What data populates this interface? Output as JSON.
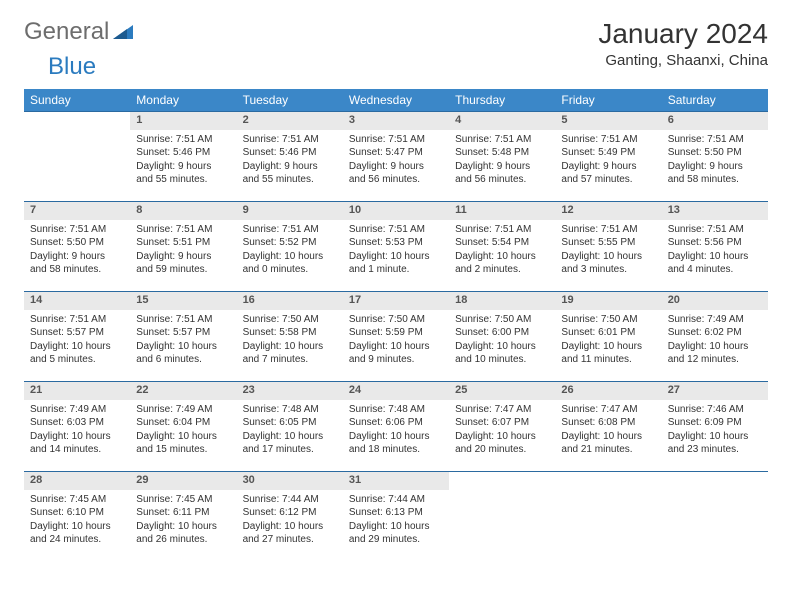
{
  "logo": {
    "text1": "General",
    "text2": "Blue"
  },
  "title": "January 2024",
  "location": "Ganting, Shaanxi, China",
  "colors": {
    "header_bg": "#3b87c8",
    "header_text": "#ffffff",
    "daynum_bg": "#e9e9e9",
    "border": "#2b6aa0",
    "logo_gray": "#6d6d6d",
    "logo_blue": "#2b7bbf"
  },
  "weekdays": [
    "Sunday",
    "Monday",
    "Tuesday",
    "Wednesday",
    "Thursday",
    "Friday",
    "Saturday"
  ],
  "weeks": [
    {
      "days": [
        {
          "num": "",
          "lines": []
        },
        {
          "num": "1",
          "lines": [
            "Sunrise: 7:51 AM",
            "Sunset: 5:46 PM",
            "Daylight: 9 hours",
            "and 55 minutes."
          ]
        },
        {
          "num": "2",
          "lines": [
            "Sunrise: 7:51 AM",
            "Sunset: 5:46 PM",
            "Daylight: 9 hours",
            "and 55 minutes."
          ]
        },
        {
          "num": "3",
          "lines": [
            "Sunrise: 7:51 AM",
            "Sunset: 5:47 PM",
            "Daylight: 9 hours",
            "and 56 minutes."
          ]
        },
        {
          "num": "4",
          "lines": [
            "Sunrise: 7:51 AM",
            "Sunset: 5:48 PM",
            "Daylight: 9 hours",
            "and 56 minutes."
          ]
        },
        {
          "num": "5",
          "lines": [
            "Sunrise: 7:51 AM",
            "Sunset: 5:49 PM",
            "Daylight: 9 hours",
            "and 57 minutes."
          ]
        },
        {
          "num": "6",
          "lines": [
            "Sunrise: 7:51 AM",
            "Sunset: 5:50 PM",
            "Daylight: 9 hours",
            "and 58 minutes."
          ]
        }
      ]
    },
    {
      "days": [
        {
          "num": "7",
          "lines": [
            "Sunrise: 7:51 AM",
            "Sunset: 5:50 PM",
            "Daylight: 9 hours",
            "and 58 minutes."
          ]
        },
        {
          "num": "8",
          "lines": [
            "Sunrise: 7:51 AM",
            "Sunset: 5:51 PM",
            "Daylight: 9 hours",
            "and 59 minutes."
          ]
        },
        {
          "num": "9",
          "lines": [
            "Sunrise: 7:51 AM",
            "Sunset: 5:52 PM",
            "Daylight: 10 hours",
            "and 0 minutes."
          ]
        },
        {
          "num": "10",
          "lines": [
            "Sunrise: 7:51 AM",
            "Sunset: 5:53 PM",
            "Daylight: 10 hours",
            "and 1 minute."
          ]
        },
        {
          "num": "11",
          "lines": [
            "Sunrise: 7:51 AM",
            "Sunset: 5:54 PM",
            "Daylight: 10 hours",
            "and 2 minutes."
          ]
        },
        {
          "num": "12",
          "lines": [
            "Sunrise: 7:51 AM",
            "Sunset: 5:55 PM",
            "Daylight: 10 hours",
            "and 3 minutes."
          ]
        },
        {
          "num": "13",
          "lines": [
            "Sunrise: 7:51 AM",
            "Sunset: 5:56 PM",
            "Daylight: 10 hours",
            "and 4 minutes."
          ]
        }
      ]
    },
    {
      "days": [
        {
          "num": "14",
          "lines": [
            "Sunrise: 7:51 AM",
            "Sunset: 5:57 PM",
            "Daylight: 10 hours",
            "and 5 minutes."
          ]
        },
        {
          "num": "15",
          "lines": [
            "Sunrise: 7:51 AM",
            "Sunset: 5:57 PM",
            "Daylight: 10 hours",
            "and 6 minutes."
          ]
        },
        {
          "num": "16",
          "lines": [
            "Sunrise: 7:50 AM",
            "Sunset: 5:58 PM",
            "Daylight: 10 hours",
            "and 7 minutes."
          ]
        },
        {
          "num": "17",
          "lines": [
            "Sunrise: 7:50 AM",
            "Sunset: 5:59 PM",
            "Daylight: 10 hours",
            "and 9 minutes."
          ]
        },
        {
          "num": "18",
          "lines": [
            "Sunrise: 7:50 AM",
            "Sunset: 6:00 PM",
            "Daylight: 10 hours",
            "and 10 minutes."
          ]
        },
        {
          "num": "19",
          "lines": [
            "Sunrise: 7:50 AM",
            "Sunset: 6:01 PM",
            "Daylight: 10 hours",
            "and 11 minutes."
          ]
        },
        {
          "num": "20",
          "lines": [
            "Sunrise: 7:49 AM",
            "Sunset: 6:02 PM",
            "Daylight: 10 hours",
            "and 12 minutes."
          ]
        }
      ]
    },
    {
      "days": [
        {
          "num": "21",
          "lines": [
            "Sunrise: 7:49 AM",
            "Sunset: 6:03 PM",
            "Daylight: 10 hours",
            "and 14 minutes."
          ]
        },
        {
          "num": "22",
          "lines": [
            "Sunrise: 7:49 AM",
            "Sunset: 6:04 PM",
            "Daylight: 10 hours",
            "and 15 minutes."
          ]
        },
        {
          "num": "23",
          "lines": [
            "Sunrise: 7:48 AM",
            "Sunset: 6:05 PM",
            "Daylight: 10 hours",
            "and 17 minutes."
          ]
        },
        {
          "num": "24",
          "lines": [
            "Sunrise: 7:48 AM",
            "Sunset: 6:06 PM",
            "Daylight: 10 hours",
            "and 18 minutes."
          ]
        },
        {
          "num": "25",
          "lines": [
            "Sunrise: 7:47 AM",
            "Sunset: 6:07 PM",
            "Daylight: 10 hours",
            "and 20 minutes."
          ]
        },
        {
          "num": "26",
          "lines": [
            "Sunrise: 7:47 AM",
            "Sunset: 6:08 PM",
            "Daylight: 10 hours",
            "and 21 minutes."
          ]
        },
        {
          "num": "27",
          "lines": [
            "Sunrise: 7:46 AM",
            "Sunset: 6:09 PM",
            "Daylight: 10 hours",
            "and 23 minutes."
          ]
        }
      ]
    },
    {
      "days": [
        {
          "num": "28",
          "lines": [
            "Sunrise: 7:45 AM",
            "Sunset: 6:10 PM",
            "Daylight: 10 hours",
            "and 24 minutes."
          ]
        },
        {
          "num": "29",
          "lines": [
            "Sunrise: 7:45 AM",
            "Sunset: 6:11 PM",
            "Daylight: 10 hours",
            "and 26 minutes."
          ]
        },
        {
          "num": "30",
          "lines": [
            "Sunrise: 7:44 AM",
            "Sunset: 6:12 PM",
            "Daylight: 10 hours",
            "and 27 minutes."
          ]
        },
        {
          "num": "31",
          "lines": [
            "Sunrise: 7:44 AM",
            "Sunset: 6:13 PM",
            "Daylight: 10 hours",
            "and 29 minutes."
          ]
        },
        {
          "num": "",
          "lines": []
        },
        {
          "num": "",
          "lines": []
        },
        {
          "num": "",
          "lines": []
        }
      ]
    }
  ]
}
